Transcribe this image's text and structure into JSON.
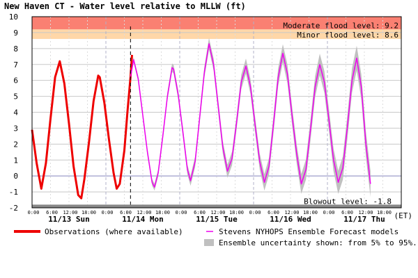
{
  "chart_data": {
    "type": "line",
    "title": "New Haven CT  -  Water level relative to MLLW (ft)",
    "xlabel": "",
    "ylabel": "",
    "ylim": [
      -2,
      10
    ],
    "xlim": [
      0,
      108
    ],
    "x_unit": "(ET)",
    "y_ticks": [
      "-2",
      "-1",
      "0",
      "1",
      "2",
      "3",
      "4",
      "5",
      "6",
      "7",
      "8",
      "9",
      "10"
    ],
    "hour_labels": [
      "0:00",
      "6:00",
      "12:00",
      "18:00"
    ],
    "days": [
      {
        "label": "11/13 Sun",
        "start_hour": 0
      },
      {
        "label": "11/14 Mon",
        "start_hour": 24
      },
      {
        "label": "11/15 Tue",
        "start_hour": 48
      },
      {
        "label": "11/16 Wed",
        "start_hour": 72
      },
      {
        "label": "11/17 Thu",
        "start_hour": 96
      }
    ],
    "now_hour": 32,
    "thresholds": [
      {
        "name": "Moderate flood level: 9.2",
        "value": 9.2,
        "color": "#fa8072"
      },
      {
        "name": "Minor flood level: 8.6",
        "value": 8.6,
        "color": "#ffd7a8"
      }
    ],
    "blowout": {
      "name": "Blowout level: -1.8",
      "value": -1.8
    },
    "series": [
      {
        "name": "Observations (where available)",
        "color": "#ee0000",
        "points": [
          [
            0,
            2.9
          ],
          [
            1.5,
            0.8
          ],
          [
            3,
            -0.8
          ],
          [
            4.5,
            0.8
          ],
          [
            6,
            3.6
          ],
          [
            7.5,
            6.2
          ],
          [
            9,
            7.2
          ],
          [
            10.5,
            5.8
          ],
          [
            12,
            3.3
          ],
          [
            13.5,
            0.6
          ],
          [
            15,
            -1.2
          ],
          [
            16,
            -1.4
          ],
          [
            17,
            -0.2
          ],
          [
            18.5,
            2.1
          ],
          [
            20,
            4.7
          ],
          [
            21.5,
            6.3
          ],
          [
            22,
            6.2
          ],
          [
            23.5,
            4.6
          ],
          [
            25,
            2.3
          ],
          [
            26.5,
            0.2
          ],
          [
            27.5,
            -0.8
          ],
          [
            28.5,
            -0.5
          ],
          [
            30,
            1.6
          ],
          [
            31,
            4.0
          ],
          [
            32,
            6.2
          ],
          [
            32.5,
            7.6
          ]
        ]
      },
      {
        "name": "Stevens NYHOPS Ensemble Forecast models",
        "color": "#ee00ee",
        "points": [
          [
            32,
            6.2
          ],
          [
            33,
            7.3
          ],
          [
            34.5,
            6.1
          ],
          [
            36,
            3.8
          ],
          [
            37.5,
            1.5
          ],
          [
            39,
            -0.4
          ],
          [
            39.8,
            -0.7
          ],
          [
            41,
            0.2
          ],
          [
            42.5,
            2.5
          ],
          [
            44,
            5.0
          ],
          [
            45.5,
            6.8
          ],
          [
            46,
            6.7
          ],
          [
            47.5,
            5.1
          ],
          [
            49,
            2.8
          ],
          [
            50.5,
            0.4
          ],
          [
            51.5,
            -0.3
          ],
          [
            53,
            0.9
          ],
          [
            54.5,
            3.7
          ],
          [
            56,
            6.5
          ],
          [
            57.5,
            8.3
          ],
          [
            59,
            7.0
          ],
          [
            60.5,
            4.4
          ],
          [
            62,
            1.8
          ],
          [
            63.5,
            0.3
          ],
          [
            65,
            1.1
          ],
          [
            66.5,
            3.4
          ],
          [
            68,
            5.9
          ],
          [
            69.5,
            6.9
          ],
          [
            71,
            5.6
          ],
          [
            72.5,
            3.2
          ],
          [
            74,
            0.9
          ],
          [
            75.5,
            -0.4
          ],
          [
            77,
            0.6
          ],
          [
            78.5,
            3.3
          ],
          [
            80,
            6.2
          ],
          [
            81.5,
            7.7
          ],
          [
            83,
            6.4
          ],
          [
            84.5,
            3.8
          ],
          [
            86,
            1.4
          ],
          [
            87.5,
            -0.5
          ],
          [
            89,
            0.4
          ],
          [
            90.5,
            2.9
          ],
          [
            92,
            5.6
          ],
          [
            93.5,
            7.0
          ],
          [
            95,
            5.9
          ],
          [
            96.5,
            3.5
          ],
          [
            98,
            1.0
          ],
          [
            99.5,
            -0.4
          ],
          [
            101,
            0.5
          ],
          [
            102.5,
            3.1
          ],
          [
            104,
            6.0
          ],
          [
            105.5,
            7.4
          ],
          [
            107,
            5.6
          ],
          [
            108.5,
            2.0
          ],
          [
            110,
            -0.5
          ]
        ]
      }
    ],
    "band": {
      "name": "Ensemble uncertainty shown: from 5% to 95%.",
      "color": "#c0c0c0"
    }
  }
}
